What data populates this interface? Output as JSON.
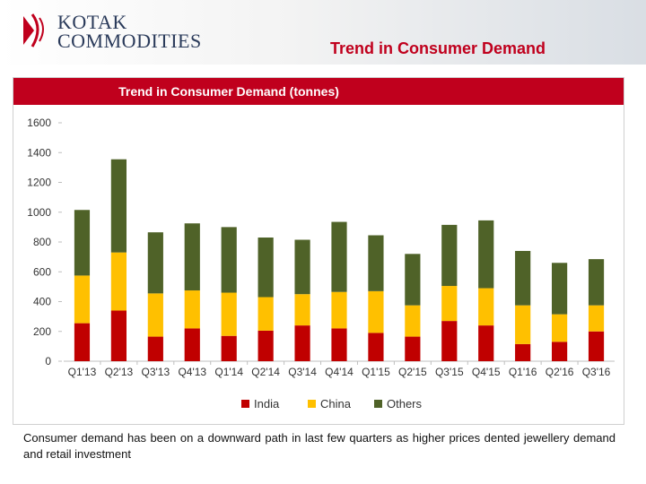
{
  "logo": {
    "line1": "KOTAK",
    "line2": "COMMODITIES"
  },
  "page_title": "Trend in Consumer Demand",
  "caption": "Consumer demand has been on a downward path in last few quarters as higher prices dented jewellery demand and retail investment",
  "colors": {
    "title_bar": "#c0001d",
    "india": "#c00000",
    "china": "#ffc000",
    "others": "#4f6228",
    "title_text": "#c0001d"
  },
  "chart_data": {
    "type": "bar",
    "stacked": true,
    "title": "Trend in Consumer Demand (tonnes)",
    "categories": [
      "Q1'13",
      "Q2'13",
      "Q3'13",
      "Q4'13",
      "Q1'14",
      "Q2'14",
      "Q3'14",
      "Q4'14",
      "Q1'15",
      "Q2'15",
      "Q3'15",
      "Q4'15",
      "Q1'16",
      "Q2'16",
      "Q3'16"
    ],
    "series": [
      {
        "name": "India",
        "color": "#c00000",
        "values": [
          255,
          340,
          165,
          220,
          170,
          205,
          240,
          220,
          190,
          165,
          270,
          240,
          115,
          130,
          200
        ]
      },
      {
        "name": "China",
        "color": "#ffc000",
        "values": [
          320,
          390,
          290,
          255,
          290,
          225,
          210,
          245,
          280,
          210,
          235,
          250,
          260,
          185,
          175
        ]
      },
      {
        "name": "Others",
        "color": "#4f6228",
        "values": [
          440,
          625,
          410,
          450,
          440,
          400,
          365,
          470,
          375,
          345,
          410,
          455,
          365,
          345,
          310
        ]
      }
    ],
    "ylim": [
      0,
      1600
    ],
    "yticks": [
      0,
      200,
      400,
      600,
      800,
      1000,
      1200,
      1400,
      1600
    ],
    "legend_position": "bottom",
    "grid": false
  }
}
